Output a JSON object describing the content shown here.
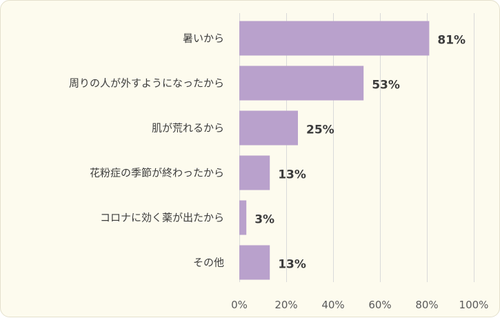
{
  "chart_data": {
    "type": "bar",
    "orientation": "horizontal",
    "title": "",
    "xlabel": "",
    "ylabel": "",
    "categories": [
      "暑いから",
      "周りの人が外すようになったから",
      "肌が荒れるから",
      "花粉症の季節が終わったから",
      "コロナに効く薬が出たから",
      "その他"
    ],
    "values": [
      81,
      53,
      25,
      13,
      3,
      13
    ],
    "value_labels": [
      "81%",
      "53%",
      "25%",
      "13%",
      "3%",
      "13%"
    ],
    "x_ticks": [
      0,
      20,
      40,
      60,
      80,
      100
    ],
    "x_tick_labels": [
      "0%",
      "20%",
      "40%",
      "60%",
      "80%",
      "100%"
    ],
    "xlim": [
      0,
      100
    ],
    "grid": true,
    "legend": "none",
    "colors": {
      "bar": "#b9a1cc",
      "background": "#fdfbee",
      "grid": "#d9d9d9",
      "text": "#3c3c3c"
    }
  }
}
